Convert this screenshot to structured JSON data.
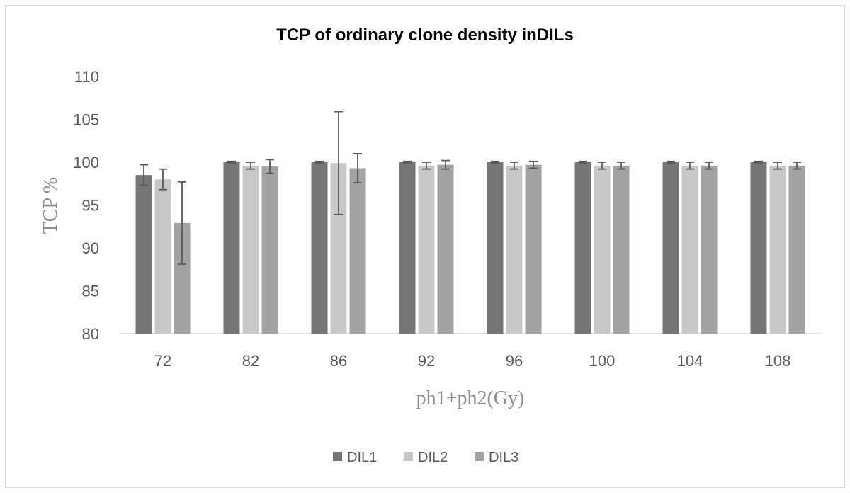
{
  "chart_data": {
    "type": "bar",
    "title": "TCP of ordinary clone density inDILs",
    "xlabel": "ph1+ph2(Gy)",
    "ylabel": "TCP %",
    "ylim": [
      80,
      110
    ],
    "yticks": [
      80,
      85,
      90,
      95,
      100,
      105,
      110
    ],
    "grid": false,
    "legend_position": "bottom",
    "error_bars": true,
    "categories": [
      "72",
      "82",
      "86",
      "92",
      "96",
      "100",
      "104",
      "108"
    ],
    "series": [
      {
        "name": "DIL1",
        "color": "#767676",
        "values": [
          98.5,
          100,
          100,
          100,
          100,
          100,
          100,
          100
        ],
        "errors": [
          1.2,
          0.1,
          0.1,
          0.1,
          0.1,
          0.1,
          0.1,
          0.1
        ]
      },
      {
        "name": "DIL2",
        "color": "#c8c8c8",
        "values": [
          98.0,
          99.6,
          99.9,
          99.6,
          99.6,
          99.6,
          99.6,
          99.6
        ],
        "errors": [
          1.2,
          0.4,
          6.0,
          0.4,
          0.4,
          0.4,
          0.4,
          0.4
        ]
      },
      {
        "name": "DIL3",
        "color": "#a3a3a3",
        "values": [
          92.9,
          99.5,
          99.3,
          99.7,
          99.7,
          99.6,
          99.6,
          99.6
        ],
        "errors": [
          4.8,
          0.8,
          1.7,
          0.5,
          0.4,
          0.4,
          0.4,
          0.4
        ]
      }
    ]
  }
}
